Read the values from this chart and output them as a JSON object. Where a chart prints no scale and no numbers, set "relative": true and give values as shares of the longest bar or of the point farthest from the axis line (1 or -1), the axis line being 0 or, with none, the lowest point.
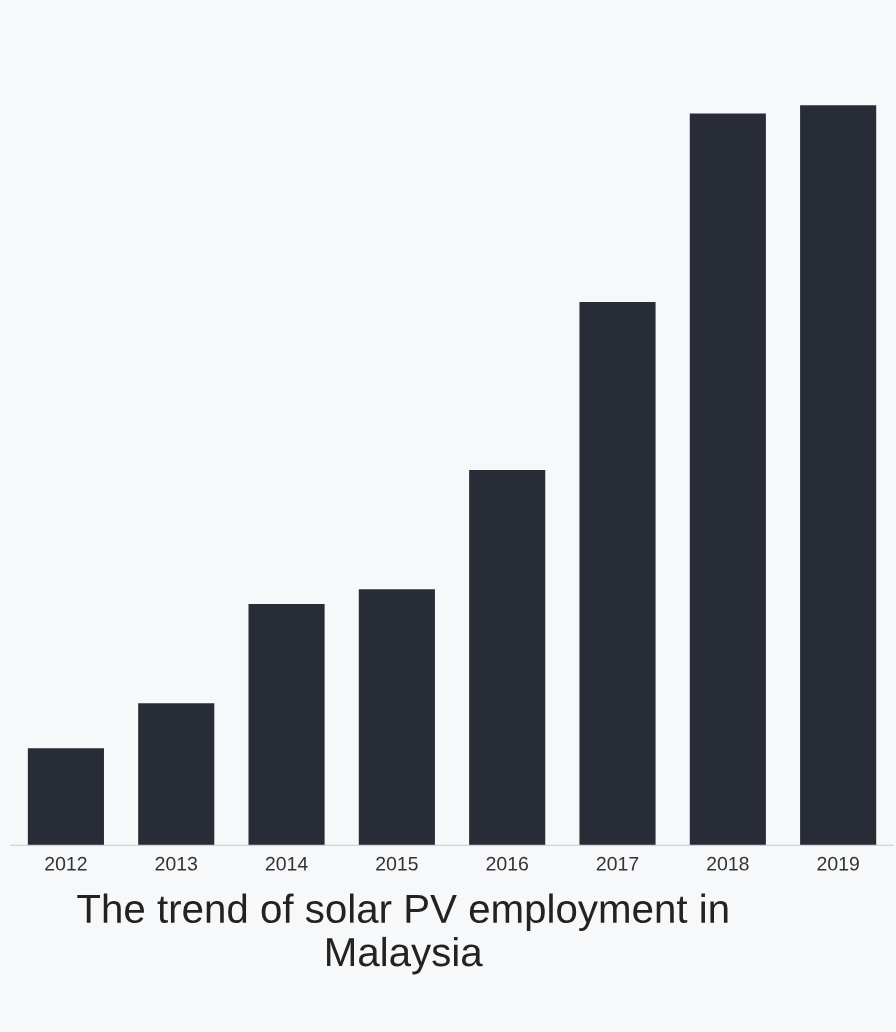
{
  "chart_data": {
    "type": "bar",
    "title": "The trend of solar PV employment in Malaysia",
    "categories": [
      "2012",
      "2013",
      "2014",
      "2015",
      "2016",
      "2017",
      "2018",
      "2019"
    ],
    "values": [
      0.131,
      0.192,
      0.326,
      0.346,
      0.507,
      0.734,
      0.989,
      1
    ],
    "color": "#282c36",
    "relative": true,
    "grid": false,
    "legend": false
  }
}
